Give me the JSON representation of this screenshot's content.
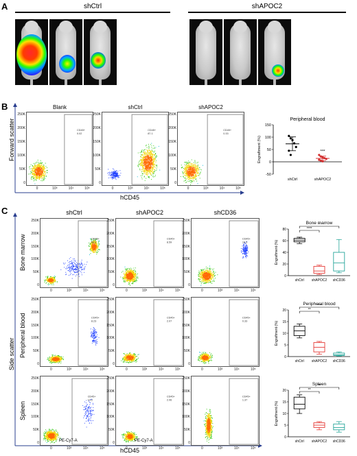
{
  "panelA": {
    "label": "A",
    "groups": [
      {
        "title": "shCtrl"
      },
      {
        "title": "shAPOC2"
      }
    ]
  },
  "panelB": {
    "label": "B",
    "plot_titles": [
      "Blank",
      "shCtrl",
      "shAPOC2"
    ],
    "y_axis": "Forward scatter",
    "x_axis": "hCD45",
    "gate_labels": [
      "CD45+\n0.02",
      "CD45+\n87.1",
      "CD45+\n0.33"
    ],
    "y_ticks": [
      "250K",
      "200K",
      "150K",
      "100K",
      "50K",
      "0"
    ],
    "x_ticks": [
      "0",
      "10³",
      "10⁴",
      "10⁵"
    ],
    "chart_data": {
      "type": "scatter",
      "title": "Peripheral blood",
      "ylabel": "Engraftment (%)",
      "categories": [
        "shCtrl",
        "shAPOC2"
      ],
      "yticks": [
        "150",
        "100",
        "50",
        "0",
        "-50"
      ],
      "ylim": [
        -50,
        150
      ],
      "series": [
        {
          "name": "shCtrl",
          "values": [
            105,
            95,
            88,
            75,
            60,
            45,
            28
          ],
          "mean": 73,
          "sd": 28,
          "color": "#000000"
        },
        {
          "name": "shAPOC2",
          "values": [
            28,
            22,
            18,
            15,
            12,
            8,
            5,
            2
          ],
          "mean": 14,
          "sd": 9,
          "color": "#d32f2f"
        }
      ],
      "significance": "***"
    }
  },
  "panelC": {
    "label": "C",
    "col_titles": [
      "shCtrl",
      "shAPOC2",
      "shCD36"
    ],
    "row_titles": [
      "Bone marrow",
      "Peripheral blood",
      "Spleen"
    ],
    "y_axis": "Side scatter",
    "x_axis": "hCD45",
    "x_channel": "PE-Cy7-A",
    "gate_labels": [
      [
        "CD45+\n66.5",
        "CD45+\n8.59",
        "CD45+\n16.5"
      ],
      [
        "CD45+\n8.23",
        "CD45+\n2.07",
        "CD45+\n0.33"
      ],
      [
        "CD45+\n14.2",
        "CD45+\n2.06",
        "CD45+\n1.37"
      ]
    ],
    "y_ticks": [
      "250K",
      "200K",
      "150K",
      "100K",
      "50K",
      "0"
    ],
    "x_ticks": [
      "0",
      "10³",
      "10⁴",
      "10⁵"
    ],
    "chart_data": [
      {
        "type": "box",
        "title": "Bone marrow",
        "ylabel": "Engraftment (%)",
        "categories": [
          "shCtrl",
          "shAPOC2",
          "shCD36"
        ],
        "yticks": [
          "80",
          "60",
          "40",
          "20",
          "0"
        ],
        "ylim": [
          0,
          80
        ],
        "boxes": [
          {
            "min": 55,
            "q1": 58,
            "median": 61,
            "q3": 64,
            "max": 66,
            "color": "#000000"
          },
          {
            "min": 2,
            "q1": 4,
            "median": 8,
            "q3": 16,
            "max": 18,
            "color": "#e53935"
          },
          {
            "min": 5,
            "q1": 8,
            "median": 22,
            "q3": 40,
            "max": 62,
            "color": "#26a69a"
          }
        ],
        "significance": [
          "****",
          "*"
        ]
      },
      {
        "type": "box",
        "title": "Peripheral blood",
        "ylabel": "Engraftment (%)",
        "categories": [
          "shCtrl",
          "shAPOC2",
          "shCD36"
        ],
        "yticks": [
          "20",
          "15",
          "10",
          "5",
          "0"
        ],
        "ylim": [
          0,
          20
        ],
        "boxes": [
          {
            "min": 8,
            "q1": 9,
            "median": 11,
            "q3": 13,
            "max": 14,
            "color": "#000000"
          },
          {
            "min": 1,
            "q1": 2,
            "median": 4,
            "q3": 6,
            "max": 6.5,
            "color": "#e53935"
          },
          {
            "min": 0.2,
            "q1": 0.5,
            "median": 0.8,
            "q3": 1.5,
            "max": 2,
            "color": "#26a69a"
          }
        ],
        "significance": [
          "**",
          "***"
        ]
      },
      {
        "type": "box",
        "title": "Spleen",
        "ylabel": "Engraftment (%)",
        "categories": [
          "shCtrl",
          "shAPOC2",
          "shCD36"
        ],
        "yticks": [
          "20",
          "15",
          "10",
          "5",
          "0"
        ],
        "ylim": [
          0,
          20
        ],
        "boxes": [
          {
            "min": 10,
            "q1": 12,
            "median": 14,
            "q3": 17,
            "max": 18,
            "color": "#000000"
          },
          {
            "min": 3,
            "q1": 4,
            "median": 5,
            "q3": 6,
            "max": 6.5,
            "color": "#e53935"
          },
          {
            "min": 2,
            "q1": 3,
            "median": 4,
            "q3": 5.5,
            "max": 6.5,
            "color": "#26a69a"
          }
        ],
        "significance": [
          "**",
          "**"
        ]
      }
    ]
  }
}
